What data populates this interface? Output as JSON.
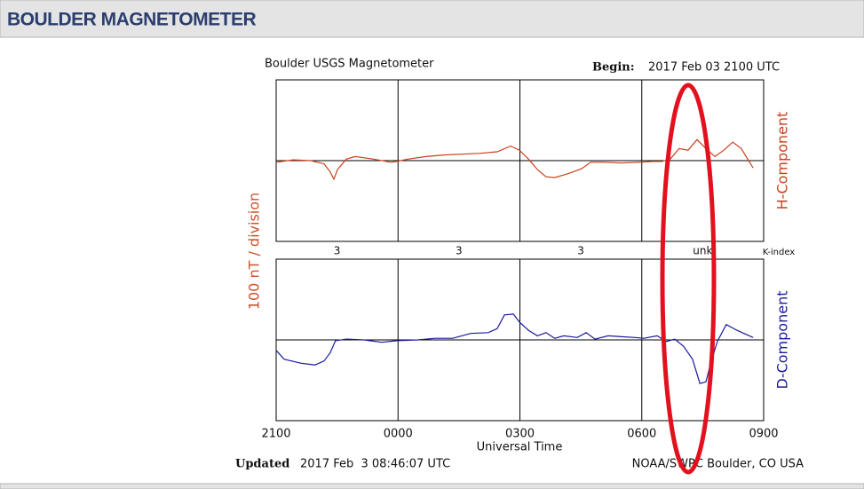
{
  "header": {
    "title": "BOULDER MAGNETOMETER"
  },
  "chart_data": [
    {
      "type": "line",
      "title": "Boulder USGS Magnetometer",
      "begin_label": "Begin:",
      "begin": "2017 Feb 03 2100 UTC",
      "y_label": "100 nT / division",
      "xlim": [
        0,
        12
      ],
      "ylim": [
        -100,
        100
      ],
      "k_index": {
        "label": "K-index",
        "values": [
          3,
          3,
          3,
          "unk"
        ]
      },
      "series": [
        {
          "name": "H-Component",
          "color": "#c8401c",
          "x": [
            0.0,
            0.42,
            0.85,
            1.18,
            1.33,
            1.42,
            1.51,
            1.73,
            1.95,
            2.38,
            2.82,
            2.97,
            3.26,
            3.69,
            4.13,
            4.57,
            5.01,
            5.44,
            5.77,
            5.99,
            6.21,
            6.43,
            6.64,
            6.86,
            7.19,
            7.52,
            7.74,
            8.07,
            8.5,
            8.94,
            9.27,
            9.49,
            9.7,
            9.92,
            10.14,
            10.36,
            10.58,
            10.8,
            11.02,
            11.24,
            11.45,
            11.74
          ],
          "values": [
            -2,
            1,
            0,
            -4,
            -14,
            -23,
            -11,
            2,
            5,
            2,
            -2,
            -1,
            2,
            5,
            7,
            8,
            9,
            11,
            18,
            13,
            2,
            -11,
            -20,
            -21,
            -16,
            -10,
            -2,
            -2,
            -3,
            -2,
            -1,
            -1,
            2,
            15,
            13,
            26,
            15,
            5,
            13,
            23,
            15,
            -9
          ]
        }
      ]
    },
    {
      "type": "line",
      "x_label": "Universal Time",
      "xlim": [
        0,
        12
      ],
      "ylim": [
        -100,
        100
      ],
      "xticks": [
        {
          "value": 0,
          "label": "2100"
        },
        {
          "value": 3,
          "label": "0000"
        },
        {
          "value": 6,
          "label": "0300"
        },
        {
          "value": 9,
          "label": "0600"
        },
        {
          "value": 12,
          "label": "0900"
        }
      ],
      "updated_label": "Updated",
      "updated": "2017 Feb  3 08:46:07 UTC",
      "source": "NOAA/SWPC Boulder, CO USA",
      "series": [
        {
          "name": "D-Component",
          "color": "#1a1a9c",
          "x": [
            0.0,
            0.2,
            0.63,
            0.96,
            1.18,
            1.33,
            1.46,
            1.73,
            2.16,
            2.6,
            2.97,
            3.48,
            3.91,
            4.35,
            4.79,
            5.22,
            5.44,
            5.62,
            5.84,
            5.99,
            6.21,
            6.43,
            6.64,
            6.86,
            7.08,
            7.41,
            7.63,
            7.85,
            8.17,
            8.5,
            8.83,
            9.05,
            9.38,
            9.6,
            9.81,
            10.03,
            10.25,
            10.43,
            10.58,
            10.69,
            10.86,
            11.08,
            11.34,
            11.74
          ],
          "values": [
            -13,
            -24,
            -29,
            -31,
            -26,
            -16,
            -1,
            1,
            0,
            -3,
            -1,
            0,
            2,
            2,
            8,
            9,
            14,
            31,
            32,
            22,
            12,
            5,
            9,
            2,
            5,
            3,
            9,
            1,
            5,
            4,
            3,
            2,
            5,
            -2,
            1,
            -8,
            -24,
            -54,
            -52,
            -30,
            -2,
            19,
            12,
            3
          ]
        }
      ]
    }
  ]
}
